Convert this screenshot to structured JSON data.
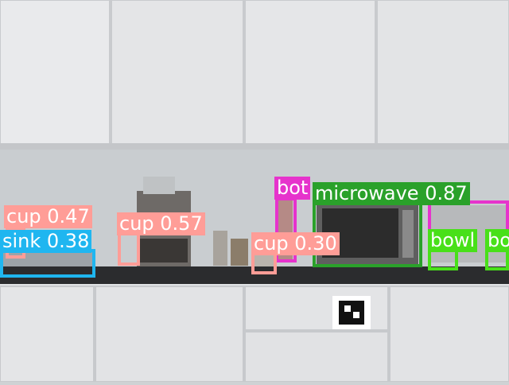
{
  "detections": [
    {
      "label": "cup 0.47",
      "color": "#ff9d97"
    },
    {
      "label": "sink 0.38",
      "color": "#1fb6f0"
    },
    {
      "label": "cup 0.57",
      "color": "#ff9d97"
    },
    {
      "label": "bot",
      "color": "#e633cc"
    },
    {
      "label": "microwave 0.87",
      "color": "#2aa12a"
    },
    {
      "label": "cup 0.30",
      "color": "#ff9d97"
    },
    {
      "label": "bowl",
      "color": "#48e019"
    },
    {
      "label": "bo",
      "color": "#48e019"
    }
  ]
}
